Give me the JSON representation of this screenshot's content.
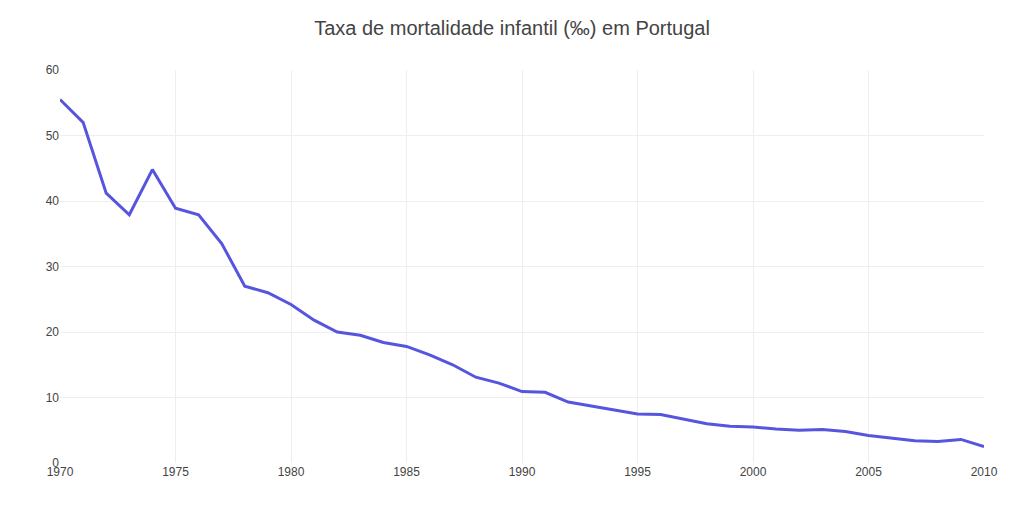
{
  "chart_data": {
    "type": "line",
    "title": "Taxa de mortalidade infantil (‰) em Portugal",
    "x": [
      1970,
      1971,
      1972,
      1973,
      1974,
      1975,
      1976,
      1977,
      1978,
      1979,
      1980,
      1981,
      1982,
      1983,
      1984,
      1985,
      1986,
      1987,
      1988,
      1989,
      1990,
      1991,
      1992,
      1993,
      1994,
      1995,
      1996,
      1997,
      1998,
      1999,
      2000,
      2001,
      2002,
      2003,
      2004,
      2005,
      2006,
      2007,
      2008,
      2009,
      2010
    ],
    "values": [
      55.5,
      52.0,
      41.2,
      37.9,
      44.8,
      38.9,
      37.9,
      33.5,
      27.0,
      26.0,
      24.2,
      21.8,
      20.0,
      19.5,
      18.4,
      17.8,
      16.5,
      15.0,
      13.1,
      12.2,
      10.9,
      10.8,
      9.3,
      8.7,
      8.1,
      7.5,
      7.4,
      6.7,
      6.0,
      5.6,
      5.5,
      5.2,
      5.0,
      5.1,
      4.8,
      4.2,
      3.8,
      3.4,
      3.3,
      3.6,
      2.5
    ],
    "color": "#5555dd",
    "xlim": [
      1970,
      2010
    ],
    "ylim": [
      0,
      60
    ],
    "xticks": [
      1970,
      1975,
      1980,
      1985,
      1990,
      1995,
      2000,
      2005,
      2010
    ],
    "yticks": [
      0,
      10,
      20,
      30,
      40,
      50,
      60
    ],
    "grid": true
  }
}
